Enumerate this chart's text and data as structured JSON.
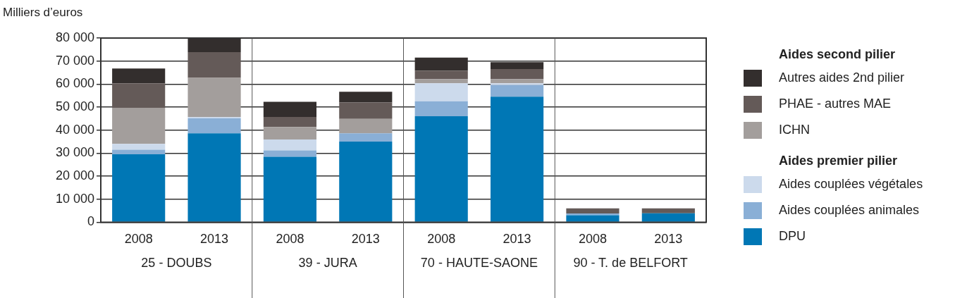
{
  "chart_data": {
    "type": "bar",
    "stacked": true,
    "ylabel": "Milliers d’euros",
    "categories": [
      "2008",
      "2013",
      "2008",
      "2013",
      "2008",
      "2013",
      "2008",
      "2013"
    ],
    "series": [
      {
        "name": "DPU",
        "color": "#0077b5",
        "values": [
          29500,
          38600,
          28400,
          35000,
          46000,
          54500,
          3000,
          3900
        ]
      },
      {
        "name": "Aides couplées animales",
        "color": "#8aafd6",
        "values": [
          2000,
          6500,
          2800,
          3600,
          6500,
          5100,
          800,
          0
        ]
      },
      {
        "name": "Aides couplées végétales",
        "color": "#ccdaec",
        "values": [
          2500,
          600,
          4700,
          0,
          7800,
          700,
          0,
          0
        ]
      },
      {
        "name": "ICHN",
        "color": "#a39e9c",
        "values": [
          15700,
          17000,
          5500,
          6300,
          1900,
          1900,
          0,
          0
        ]
      },
      {
        "name": "PHAE - autres MAE",
        "color": "#645a58",
        "values": [
          10600,
          11200,
          4300,
          7100,
          3600,
          4300,
          2200,
          2100
        ]
      },
      {
        "name": "Autres aides 2nd pilier",
        "color": "#332e2d",
        "values": [
          6500,
          6100,
          6600,
          4700,
          5700,
          3000,
          0,
          0
        ]
      }
    ],
    "ylim": [
      0,
      80000
    ],
    "yticks": [
      0,
      {
        "value": 10000,
        "label": "10 000"
      },
      {
        "value": 20000,
        "label": "20 000"
      },
      {
        "value": 30000,
        "label": "30 000"
      },
      {
        "value": 40000,
        "label": "40 000"
      },
      {
        "value": 50000,
        "label": "50 000"
      },
      {
        "value": 60000,
        "label": "60 000"
      },
      {
        "value": 70000,
        "label": "70 000"
      },
      {
        "value": 80000,
        "label": "80 000"
      }
    ],
    "grid": "y",
    "legend": "right",
    "annotations": [
      "Aides premier pilier",
      "Aides second pilier",
      "25 - DOUBS",
      "39 - JURA",
      "70 - HAUTE-SAONE",
      "90 - T. de BELFORT"
    ]
  }
}
